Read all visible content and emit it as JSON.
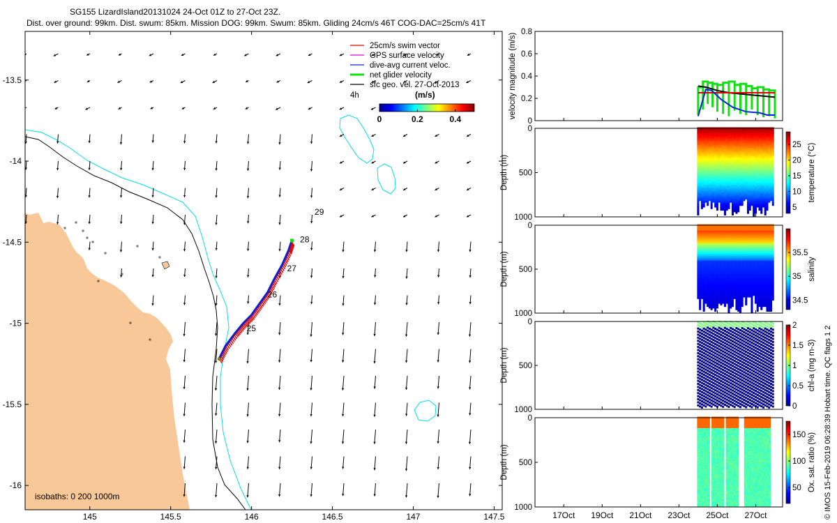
{
  "header": {
    "title": "SG155 LizardIsland20131024 24-Oct 01Z to 27-Oct 23Z.",
    "subtitle": "Dist. over ground: 99km. Dist. swum: 85km. Mission DOG: 99km. Swum: 85km. Gliding 24cm/s 46T COG-DAC=25cm/s 41T"
  },
  "credit": "© IMOS 15-Feb-2019 06:28:39 Hobart time. QC flags 1  2",
  "colors": {
    "land": "#f8c898",
    "isobath_200": "#000000",
    "isobath_1000": "#00e0e8",
    "swim_vector": "#e00000",
    "gps_velocity": "#e000e0",
    "dive_avg": "#0020e0",
    "net_glider": "#10e010",
    "sfc_geo": "#000000"
  },
  "chart_data": [
    {
      "type": "map",
      "x_ticks": [
        "145",
        "145.5",
        "146",
        "146.5",
        "147",
        "147.5"
      ],
      "x_tick_values": [
        145,
        145.5,
        146,
        146.5,
        147,
        147.5
      ],
      "y_ticks": [
        "-13.5",
        "-14",
        "-14.5",
        "-15",
        "-15.5",
        "-16"
      ],
      "y_tick_values": [
        -13.5,
        -14,
        -14.5,
        -15,
        -15.5,
        -16
      ],
      "xlim": [
        144.6,
        147.55
      ],
      "ylim": [
        -16.15,
        -13.2
      ],
      "legend": {
        "placement": "top-right",
        "entries": [
          "25cm/s swim vector",
          "GPS surface velocity",
          "dive-avg current veloc.",
          "net glider velocity",
          "sfc geo. vel. 27-Oct-2013"
        ],
        "time_label": "4h"
      },
      "colorbar": {
        "unit": "(m/s)",
        "ticks": [
          "0",
          "0.2",
          "0.4"
        ],
        "tick_values": [
          0,
          0.2,
          0.4
        ],
        "range": [
          0,
          0.5
        ]
      },
      "track": {
        "points": [
          [
            145.8,
            -15.22
          ],
          [
            145.84,
            -15.14
          ],
          [
            145.9,
            -15.06
          ],
          [
            145.95,
            -15.0
          ],
          [
            146.0,
            -14.95
          ],
          [
            146.05,
            -14.88
          ],
          [
            146.1,
            -14.81
          ],
          [
            146.14,
            -14.73
          ],
          [
            146.19,
            -14.64
          ],
          [
            146.23,
            -14.55
          ],
          [
            146.25,
            -14.49
          ]
        ],
        "day_labels": [
          {
            "label": "25",
            "lon": 145.97,
            "lat": -15.05
          },
          {
            "label": "26",
            "lon": 146.1,
            "lat": -14.84
          },
          {
            "label": "27",
            "lon": 146.22,
            "lat": -14.68
          },
          {
            "label": "28",
            "lon": 146.3,
            "lat": -14.5
          },
          {
            "label": "29",
            "lon": 146.39,
            "lat": -14.33
          }
        ]
      },
      "isobaths_label": "isobaths: 0   200  1000m"
    },
    {
      "type": "line",
      "ylabel": "velocity magnitude (m/s)",
      "y_ticks": [
        "0",
        "0.2",
        "0.4",
        "0.6",
        "0.8"
      ],
      "y_tick_values": [
        0,
        0.2,
        0.4,
        0.6,
        0.8
      ],
      "ylim": [
        0,
        0.8
      ],
      "xlim": [
        15.5,
        28.4
      ],
      "series": [
        {
          "color": "#000000",
          "x": [
            24.0,
            24.4,
            25.0,
            25.6,
            26.2,
            26.8,
            27.4,
            28.0
          ],
          "values": [
            0.31,
            0.3,
            0.27,
            0.25,
            0.24,
            0.23,
            0.22,
            0.21
          ]
        },
        {
          "color": "#e00000",
          "x": [
            24.0,
            28.0
          ],
          "values": [
            0.25,
            0.25
          ]
        },
        {
          "color": "#0020e0",
          "x": [
            24.0,
            24.1,
            24.4,
            24.7,
            25.2,
            25.8,
            26.5,
            27.2,
            27.6,
            28.0
          ],
          "values": [
            0.04,
            0.1,
            0.28,
            0.27,
            0.19,
            0.12,
            0.08,
            0.07,
            0.05,
            0.05
          ]
        }
      ],
      "glider_segments_x": [
        24.0,
        24.25,
        24.5,
        24.75,
        25.0,
        25.3,
        25.6,
        25.9,
        26.2,
        26.5,
        26.8,
        27.1,
        27.4,
        27.7,
        28.0
      ],
      "glider_segments_high": [
        0.3,
        0.35,
        0.34,
        0.33,
        0.32,
        0.34,
        0.35,
        0.32,
        0.33,
        0.31,
        0.29,
        0.3,
        0.28,
        0.27,
        0.27
      ],
      "glider_segments_low": [
        0.05,
        0.1,
        0.15,
        0.12,
        0.08,
        0.06,
        0.04,
        0.09,
        0.06,
        0.05,
        0.1,
        0.05,
        0.03,
        0.04,
        0.02
      ]
    },
    {
      "type": "scatter",
      "ylabel": "Depth (m)",
      "y_ticks": [
        "0",
        "500",
        "1000"
      ],
      "y_tick_values": [
        0,
        500,
        1000
      ],
      "ylim": [
        1000,
        0
      ],
      "variable_label": "temperature (°C)",
      "colorbar_ticks": [
        "5",
        "10",
        "15",
        "20",
        "25"
      ],
      "colorbar_tick_values": [
        5,
        10,
        15,
        20,
        25
      ],
      "colorbar_range": [
        3,
        29
      ]
    },
    {
      "type": "scatter",
      "ylabel": "Depth (m)",
      "y_ticks": [
        "0",
        "500",
        "1000"
      ],
      "y_tick_values": [
        0,
        500,
        1000
      ],
      "ylim": [
        1000,
        0
      ],
      "variable_label": "salinity",
      "colorbar_ticks": [
        "34.5",
        "35",
        "35.5"
      ],
      "colorbar_tick_values": [
        34.5,
        35,
        35.5
      ],
      "colorbar_range": [
        34.3,
        36.0
      ]
    },
    {
      "type": "scatter",
      "ylabel": "Depth (m)",
      "y_ticks": [
        "0",
        "500",
        "1000"
      ],
      "y_tick_values": [
        0,
        500,
        1000
      ],
      "ylim": [
        1000,
        0
      ],
      "variable_label": "chl-a (mg m-3)",
      "colorbar_ticks": [
        "0",
        "0.5",
        "1",
        "1.5",
        "2"
      ],
      "colorbar_tick_values": [
        0,
        0.5,
        1,
        1.5,
        2
      ],
      "colorbar_range": [
        0,
        2
      ]
    },
    {
      "type": "scatter",
      "ylabel": "Depth (m)",
      "y_ticks": [
        "0",
        "500",
        "1000"
      ],
      "y_tick_values": [
        0,
        500,
        1000
      ],
      "ylim": [
        1000,
        0
      ],
      "variable_label": "Ox. sat. ratio (%)",
      "colorbar_ticks": [
        "50",
        "100",
        "150"
      ],
      "colorbar_tick_values": [
        50,
        100,
        150
      ],
      "colorbar_range": [
        20,
        175
      ],
      "x_ticks": [
        "17Oct",
        "19Oct",
        "21Oct",
        "23Oct",
        "25Oct",
        "27Oct"
      ],
      "x_tick_values": [
        17,
        19,
        21,
        23,
        25,
        27
      ]
    }
  ]
}
